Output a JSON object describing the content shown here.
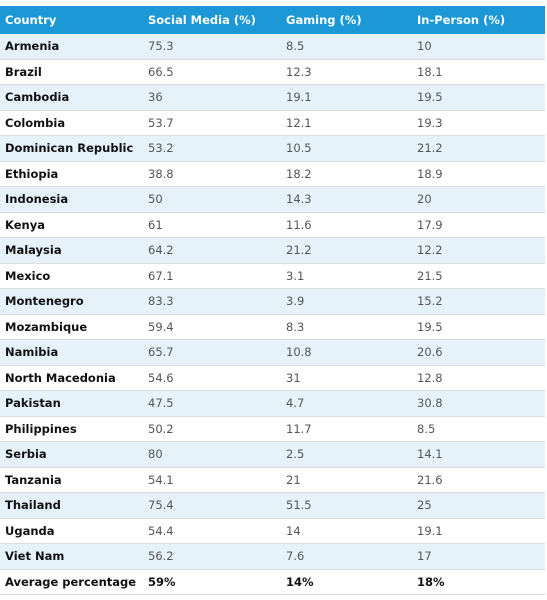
{
  "table": {
    "header": [
      "Country",
      "Social Media (%)",
      "Gaming (%)",
      "In-Person (%)"
    ],
    "rows": [
      [
        "Armenia",
        75.3,
        8.5,
        10
      ],
      [
        "Brazil",
        66.5,
        12.3,
        18.1
      ],
      [
        "Cambodia",
        36,
        19.1,
        19.5
      ],
      [
        "Colombia",
        53.7,
        12.1,
        19.3
      ],
      [
        "Dominican Republic",
        53.2,
        10.5,
        21.2
      ],
      [
        "Ethiopia",
        38.8,
        18.2,
        18.9
      ],
      [
        "Indonesia",
        50,
        14.3,
        20
      ],
      [
        "Kenya",
        61,
        11.6,
        17.9
      ],
      [
        "Malaysia",
        64.2,
        21.2,
        12.2
      ],
      [
        "Mexico",
        67.1,
        3.1,
        21.5
      ],
      [
        "Montenegro",
        83.3,
        3.9,
        15.2
      ],
      [
        "Mozambique",
        59.4,
        8.3,
        19.5
      ],
      [
        "Namibia",
        65.7,
        10.8,
        20.6
      ],
      [
        "North Macedonia",
        54.6,
        31,
        12.8
      ],
      [
        "Pakistan",
        47.5,
        4.7,
        30.8
      ],
      [
        "Philippines",
        50.2,
        11.7,
        8.5
      ],
      [
        "Serbia",
        80,
        2.5,
        14.1
      ],
      [
        "Tanzania",
        54.1,
        21,
        21.6
      ],
      [
        "Thailand",
        75.4,
        51.5,
        25
      ],
      [
        "Uganda",
        54.4,
        14,
        19.1
      ],
      [
        "Viet Nam",
        56.2,
        7.6,
        17
      ]
    ],
    "footer": [
      "Average percentage",
      "59%",
      "14%",
      "18%"
    ]
  }
}
